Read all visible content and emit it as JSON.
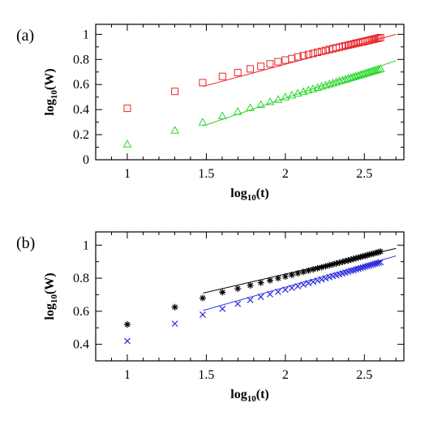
{
  "chart_data": [
    {
      "panel_label": "(a)",
      "type": "scatter",
      "xlabel": "log10(t)",
      "ylabel": "log10(W)",
      "xlim": [
        0.8,
        2.75
      ],
      "ylim": [
        0,
        1.08
      ],
      "xticks": [
        1,
        1.5,
        2,
        2.5
      ],
      "yticks": [
        0,
        0.2,
        0.4,
        0.6,
        0.8,
        1
      ],
      "x_tick_labels": [
        "1",
        "1.5",
        "2",
        "2.5"
      ],
      "y_tick_labels": [
        "0",
        "0.2",
        "0.4",
        "0.6",
        "0.8",
        "1"
      ],
      "grid": false,
      "legend": "none",
      "series": [
        {
          "marker": "square",
          "color": "#e8262b",
          "x": [
            1.0,
            1.301,
            1.477,
            1.602,
            1.699,
            1.778,
            1.845,
            1.903,
            1.954,
            2.0,
            2.041,
            2.079,
            2.114,
            2.146,
            2.176,
            2.204,
            2.23,
            2.255,
            2.279,
            2.301,
            2.322,
            2.342,
            2.362,
            2.38,
            2.398,
            2.415,
            2.431,
            2.447,
            2.462,
            2.477,
            2.491,
            2.505,
            2.519,
            2.531,
            2.544,
            2.556,
            2.568,
            2.58,
            2.591,
            2.602
          ],
          "y": [
            0.41,
            0.545,
            0.615,
            0.665,
            0.695,
            0.725,
            0.745,
            0.765,
            0.782,
            0.795,
            0.807,
            0.82,
            0.83,
            0.84,
            0.848,
            0.857,
            0.865,
            0.872,
            0.879,
            0.886,
            0.892,
            0.898,
            0.904,
            0.909,
            0.914,
            0.919,
            0.924,
            0.929,
            0.933,
            0.937,
            0.941,
            0.945,
            0.949,
            0.953,
            0.957,
            0.96,
            0.964,
            0.967,
            0.971,
            0.974
          ],
          "fit_line": {
            "x": [
              1.48,
              2.7
            ],
            "y": [
              0.585,
              1.0
            ]
          }
        },
        {
          "marker": "triangle",
          "color": "#28d62b",
          "x": [
            1.0,
            1.301,
            1.477,
            1.602,
            1.699,
            1.778,
            1.845,
            1.903,
            1.954,
            2.0,
            2.041,
            2.079,
            2.114,
            2.146,
            2.176,
            2.204,
            2.23,
            2.255,
            2.279,
            2.301,
            2.322,
            2.342,
            2.362,
            2.38,
            2.398,
            2.415,
            2.431,
            2.447,
            2.462,
            2.477,
            2.491,
            2.505,
            2.519,
            2.531,
            2.544,
            2.556,
            2.568,
            2.58,
            2.591,
            2.602
          ],
          "y": [
            0.125,
            0.235,
            0.3,
            0.35,
            0.385,
            0.415,
            0.44,
            0.462,
            0.481,
            0.5,
            0.515,
            0.53,
            0.543,
            0.555,
            0.566,
            0.576,
            0.586,
            0.595,
            0.604,
            0.612,
            0.62,
            0.628,
            0.635,
            0.642,
            0.649,
            0.655,
            0.661,
            0.667,
            0.673,
            0.678,
            0.684,
            0.689,
            0.694,
            0.699,
            0.704,
            0.709,
            0.713,
            0.718,
            0.722,
            0.726
          ],
          "fit_line": {
            "x": [
              1.48,
              2.7
            ],
            "y": [
              0.27,
              0.79
            ]
          }
        }
      ]
    },
    {
      "panel_label": "(b)",
      "type": "scatter",
      "xlabel": "log10(t)",
      "ylabel": "log10(W)",
      "xlim": [
        0.8,
        2.75
      ],
      "ylim": [
        0.3,
        1.08
      ],
      "xticks": [
        1,
        1.5,
        2,
        2.5
      ],
      "yticks": [
        0.4,
        0.6,
        0.8,
        1
      ],
      "x_tick_labels": [
        "1",
        "1.5",
        "2",
        "2.5"
      ],
      "y_tick_labels": [
        "0.4",
        "0.6",
        "0.8",
        "1"
      ],
      "grid": false,
      "legend": "none",
      "series": [
        {
          "marker": "asterisk",
          "color": "#000000",
          "x": [
            1.0,
            1.301,
            1.477,
            1.602,
            1.699,
            1.778,
            1.845,
            1.903,
            1.954,
            2.0,
            2.041,
            2.079,
            2.114,
            2.146,
            2.176,
            2.204,
            2.23,
            2.255,
            2.279,
            2.301,
            2.322,
            2.342,
            2.362,
            2.38,
            2.398,
            2.415,
            2.431,
            2.447,
            2.462,
            2.477,
            2.491,
            2.505,
            2.519,
            2.531,
            2.544,
            2.556,
            2.568,
            2.58,
            2.591,
            2.602
          ],
          "y": [
            0.52,
            0.625,
            0.68,
            0.715,
            0.737,
            0.757,
            0.773,
            0.787,
            0.8,
            0.81,
            0.82,
            0.83,
            0.838,
            0.846,
            0.853,
            0.86,
            0.866,
            0.872,
            0.878,
            0.884,
            0.889,
            0.894,
            0.899,
            0.904,
            0.908,
            0.912,
            0.917,
            0.921,
            0.925,
            0.929,
            0.932,
            0.936,
            0.939,
            0.943,
            0.946,
            0.949,
            0.952,
            0.955,
            0.958,
            0.961
          ],
          "fit_line": {
            "x": [
              1.48,
              2.7
            ],
            "y": [
              0.71,
              0.98
            ]
          }
        },
        {
          "marker": "cross",
          "color": "#2a2ae0",
          "x": [
            1.0,
            1.301,
            1.477,
            1.602,
            1.699,
            1.778,
            1.845,
            1.903,
            1.954,
            2.0,
            2.041,
            2.079,
            2.114,
            2.146,
            2.176,
            2.204,
            2.23,
            2.255,
            2.279,
            2.301,
            2.322,
            2.342,
            2.362,
            2.38,
            2.398,
            2.415,
            2.431,
            2.447,
            2.462,
            2.477,
            2.491,
            2.505,
            2.519,
            2.531,
            2.544,
            2.556,
            2.568,
            2.58,
            2.591,
            2.602
          ],
          "y": [
            0.42,
            0.525,
            0.58,
            0.615,
            0.645,
            0.668,
            0.687,
            0.703,
            0.718,
            0.73,
            0.741,
            0.751,
            0.761,
            0.77,
            0.778,
            0.785,
            0.792,
            0.799,
            0.806,
            0.812,
            0.818,
            0.823,
            0.829,
            0.834,
            0.839,
            0.844,
            0.848,
            0.853,
            0.857,
            0.861,
            0.865,
            0.869,
            0.873,
            0.877,
            0.88,
            0.884,
            0.887,
            0.89,
            0.893,
            0.897
          ],
          "fit_line": {
            "x": [
              1.48,
              2.7
            ],
            "y": [
              0.605,
              0.935
            ]
          }
        }
      ]
    }
  ]
}
